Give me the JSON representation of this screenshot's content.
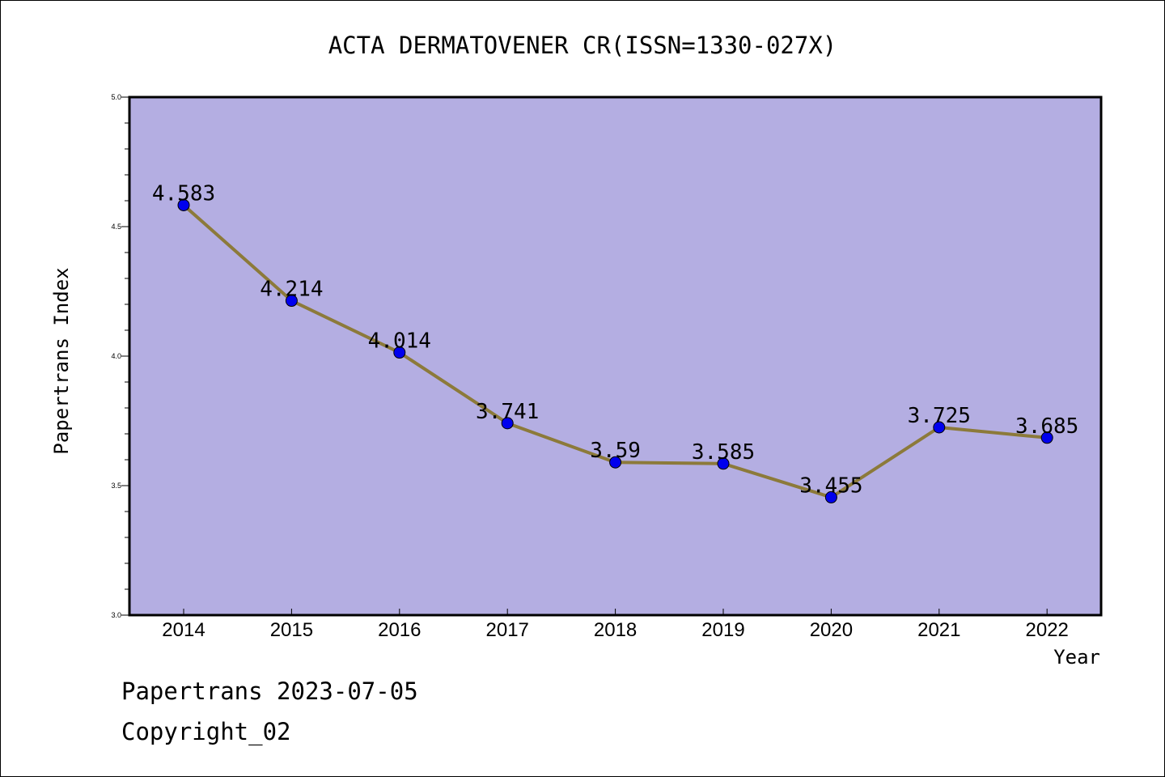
{
  "footer": {
    "line1": "Papertrans 2023-07-05",
    "line2": "Copyright_02"
  },
  "colors": {
    "plot_background": "#b4aee2",
    "line": "#8c7a3a",
    "marker": "#0000ee"
  },
  "chart_data": {
    "type": "line",
    "title": "ACTA DERMATOVENER CR(ISSN=1330-027X)",
    "xlabel": "Year",
    "ylabel": "Papertrans Index",
    "categories": [
      "2014",
      "2015",
      "2016",
      "2017",
      "2018",
      "2019",
      "2020",
      "2021",
      "2022"
    ],
    "values": [
      4.583,
      4.214,
      4.014,
      3.741,
      3.59,
      3.585,
      3.455,
      3.725,
      3.685
    ],
    "data_labels": [
      "4.583",
      "4.214",
      "4.014",
      "3.741",
      "3.59",
      "3.585",
      "3.455",
      "3.725",
      "3.685"
    ],
    "ylim": [
      3.0,
      5.0
    ],
    "yticks": [
      "3.0",
      "3.5",
      "4.0",
      "4.5",
      "5.0"
    ],
    "grid": false,
    "legend": "none"
  }
}
